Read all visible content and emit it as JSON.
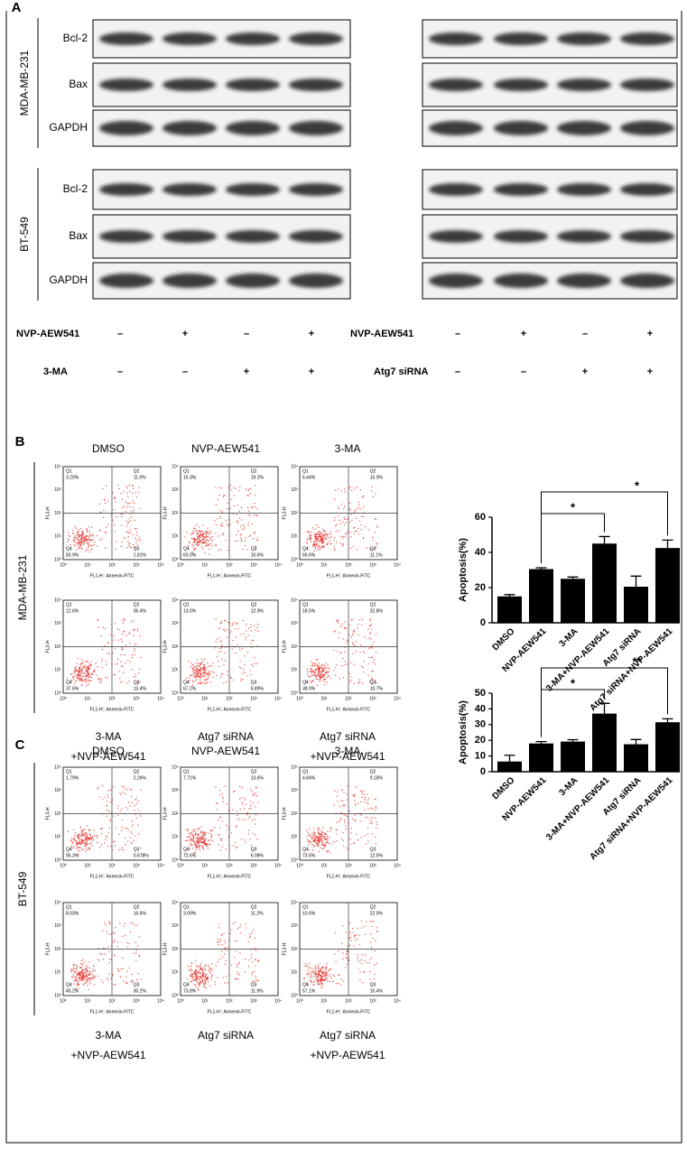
{
  "cell_lines": [
    "MDA-MB-231",
    "BT-549"
  ],
  "panel_a": {
    "label": "A",
    "bands": [
      "Bcl-2",
      "Bax",
      "GAPDH"
    ],
    "treatments_left": [
      {
        "name": "NVP-AEW541",
        "signs": [
          "–",
          "+",
          "–",
          "+"
        ]
      },
      {
        "name": "3-MA",
        "signs": [
          "–",
          "–",
          "+",
          "+"
        ]
      }
    ],
    "treatments_right": [
      {
        "name": "NVP-AEW541",
        "signs": [
          "–",
          "+",
          "–",
          "+"
        ]
      },
      {
        "name": "Atg7 siRNA",
        "signs": [
          "–",
          "–",
          "+",
          "+"
        ]
      }
    ]
  },
  "flow": {
    "quadrants": [
      "Q1",
      "Q2",
      "Q3",
      "Q4"
    ],
    "x_label": "FL1-H:: Annexin-FITC",
    "y_label": "FL3-H",
    "ticks": [
      "10⁰",
      "10¹",
      "10²",
      "10³",
      "10⁴"
    ]
  },
  "panel_b": {
    "label": "B",
    "titles": [
      "DMSO",
      "NVP-AEW541",
      "3-MA"
    ],
    "captions": [
      [
        "3-MA",
        "+NVP-AEW541"
      ],
      [
        "Atg7 siRNA"
      ],
      [
        "Atg7 siRNA",
        "+NVP-AEW541"
      ]
    ],
    "plots": [
      [
        "3.20%",
        "11.0%",
        "1.81%",
        "83.9%"
      ],
      [
        "10.3%",
        "19.2%",
        "10.6%",
        "60.0%"
      ],
      [
        "6.44%",
        "15.9%",
        "11.1%",
        "66.6%"
      ],
      [
        "12.6%",
        "36.4%",
        "13.4%",
        "37.6%"
      ],
      [
        "13.0%",
        "12.9%",
        "6.89%",
        "67.2%"
      ],
      [
        "18.5%",
        "32.8%",
        "10.7%",
        "38.0%"
      ]
    ]
  },
  "panel_c": {
    "label": "C",
    "titles": [
      "DMSO",
      "NVP-AEW541",
      "3-MA"
    ],
    "captions": [
      [
        "3-MA",
        "+NVP-AEW541"
      ],
      [
        "Atg7 siRNA"
      ],
      [
        "Atg7 siRNA",
        "+NVP-AEW541"
      ]
    ],
    "plots": [
      [
        "1.79%",
        "2.26%",
        "0.678%",
        "95.3%"
      ],
      [
        "7.71%",
        "13.6%",
        "6.08%",
        "72.6%"
      ],
      [
        "4.84%",
        "9.18%",
        "12.5%",
        "73.5%"
      ],
      [
        "8.03%",
        "16.6%",
        "30.2%",
        "45.2%"
      ],
      [
        "3.09%",
        "11.2%",
        "11.9%",
        "73.8%"
      ],
      [
        "10.6%",
        "22.0%",
        "10.4%",
        "57.1%"
      ]
    ]
  },
  "chart_data": [
    {
      "type": "bar",
      "y_label": "Apoptosis(%)",
      "color": "#000000",
      "categories": [
        "DMSO",
        "NVP-AEW541",
        "3-MA",
        "3-MA+NVP-AEW541",
        "Atg7 siRNA",
        "Atg7 siRNA+NVP-AEW541"
      ],
      "values": [
        15,
        30.5,
        25,
        45,
        20.5,
        42.5
      ],
      "errors": [
        1,
        0.8,
        1,
        4,
        6,
        4.5
      ],
      "ylim": [
        0,
        60
      ],
      "yticks": [
        0,
        20,
        40,
        60
      ],
      "annotations": [
        {
          "text": "*",
          "between": [
            "NVP-AEW541",
            "3-MA+NVP-AEW541"
          ]
        },
        {
          "text": "*",
          "between": [
            "NVP-AEW541",
            "Atg7 siRNA+NVP-AEW541"
          ]
        }
      ]
    },
    {
      "type": "bar",
      "y_label": "Apoptosis(%)",
      "color": "#000000",
      "categories": [
        "DMSO",
        "NVP-AEW541",
        "3-MA",
        "3-MA+NVP-AEW541",
        "Atg7 siRNA",
        "Atg7 siRNA+NVP-AEW541"
      ],
      "values": [
        6.5,
        18,
        19.2,
        37,
        17.5,
        31.5
      ],
      "errors": [
        4,
        1.2,
        1.2,
        6.5,
        3,
        2.2
      ],
      "ylim": [
        0,
        50
      ],
      "yticks": [
        0,
        10,
        20,
        30,
        40,
        50
      ],
      "annotations": [
        {
          "text": "*",
          "between": [
            "NVP-AEW541",
            "3-MA+NVP-AEW541"
          ]
        },
        {
          "text": "**",
          "between": [
            "NVP-AEW541",
            "Atg7 siRNA+NVP-AEW541"
          ]
        }
      ]
    }
  ]
}
